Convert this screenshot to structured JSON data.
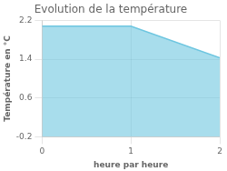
{
  "chart_data": {
    "type": "area",
    "title": "Evolution de la température",
    "xlabel": "heure par heure",
    "ylabel": "Température en °C",
    "x": [
      0,
      1,
      2
    ],
    "values": [
      2.08,
      2.08,
      1.43
    ],
    "color": "#6ec6e0",
    "xlim": [
      0,
      2
    ],
    "ylim": [
      -0.2,
      2.2
    ],
    "xticks": [
      0,
      1,
      2
    ],
    "yticks": [
      -0.2,
      0.6,
      1.4,
      2.2
    ],
    "grid": true
  }
}
